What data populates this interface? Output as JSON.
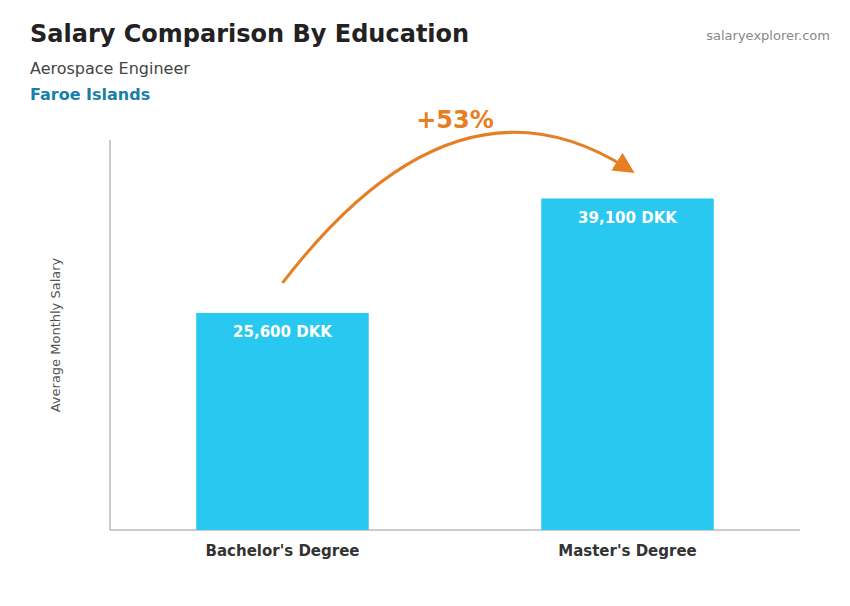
{
  "chart_data": {
    "type": "bar",
    "title": "Salary Comparison By Education",
    "subtitle": [
      "Aerospace Engineer",
      "Faroe Islands"
    ],
    "y_label": "Average Monthly Salary",
    "categories": [
      "Bachelor's Degree",
      "Master's Degree"
    ],
    "values": [
      25600,
      39100
    ],
    "value_labels": [
      "25,600 DKK",
      "39,100 DKK"
    ],
    "color": "#29C8F0",
    "ylim": [
      0,
      46000
    ],
    "annotations": [
      "+53%",
      "salaryexplorer.com"
    ],
    "data_labels": true,
    "tick_labels": "x",
    "grid": false
  }
}
